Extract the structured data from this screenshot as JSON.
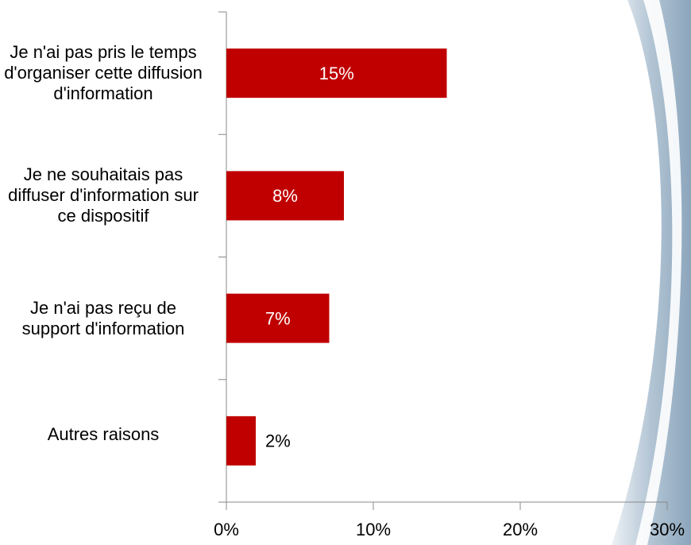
{
  "chart_data": {
    "type": "bar",
    "orientation": "horizontal",
    "categories": [
      "Je n'ai pas pris le temps d'organiser cette diffusion d'information",
      "Je ne souhaitais pas diffuser d'information sur ce dispositif",
      "Je n'ai pas reçu de support d'information",
      "Autres raisons"
    ],
    "values": [
      15,
      8,
      7,
      2
    ],
    "value_labels": [
      "15%",
      "8%",
      "7%",
      "2%"
    ],
    "color": "#c00000",
    "xlim": [
      0,
      30
    ],
    "xticks": [
      {
        "value": 0,
        "label": "0%"
      },
      {
        "value": 10,
        "label": "10%"
      },
      {
        "value": 20,
        "label": "20%"
      },
      {
        "value": 30,
        "label": "30%"
      }
    ],
    "grid": false
  }
}
